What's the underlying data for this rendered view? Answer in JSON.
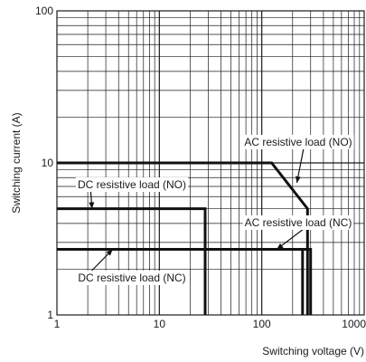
{
  "chart_data": {
    "type": "line",
    "title": "",
    "xlabel": "Switching voltage (V)",
    "ylabel": "Switching current (A)",
    "x_scale": "log",
    "y_scale": "log",
    "xlim": [
      1,
      1000
    ],
    "ylim": [
      1,
      100
    ],
    "x_ticks": [
      {
        "value": 1,
        "label": "1"
      },
      {
        "value": 10,
        "label": "10"
      },
      {
        "value": 100,
        "label": "100"
      },
      {
        "value": 1000,
        "label": "1000"
      }
    ],
    "y_ticks": [
      {
        "value": 1,
        "label": "1"
      },
      {
        "value": 10,
        "label": "10"
      },
      {
        "value": 100,
        "label": "100"
      }
    ],
    "grid": true,
    "series": [
      {
        "name": "AC resistive load (NO)",
        "points": [
          [
            1,
            10
          ],
          [
            125,
            10
          ],
          [
            280,
            5
          ],
          [
            280,
            1
          ]
        ]
      },
      {
        "name": "DC resistive load (NO)",
        "points": [
          [
            1,
            5
          ],
          [
            28,
            5
          ],
          [
            28,
            1
          ]
        ]
      },
      {
        "name": "AC resistive load (NC)",
        "points": [
          [
            1,
            2.7
          ],
          [
            300,
            2.7
          ],
          [
            300,
            1
          ]
        ]
      },
      {
        "name": "DC resistive load (NC)",
        "points": [
          [
            1,
            2.7
          ],
          [
            250,
            2.7
          ],
          [
            250,
            1
          ]
        ]
      }
    ],
    "annotations": [
      {
        "text": "AC resistive load (NO)",
        "anchor": "right",
        "target": [
          220,
          7.4
        ]
      },
      {
        "text": "DC resistive load (NO)",
        "anchor": "left",
        "target": [
          2.2,
          5
        ]
      },
      {
        "text": "AC resistive load (NC)",
        "anchor": "right",
        "target": [
          140,
          2.7
        ]
      },
      {
        "text": "DC resistive load (NC)",
        "anchor": "left",
        "target": [
          3.5,
          2.7
        ]
      }
    ]
  }
}
